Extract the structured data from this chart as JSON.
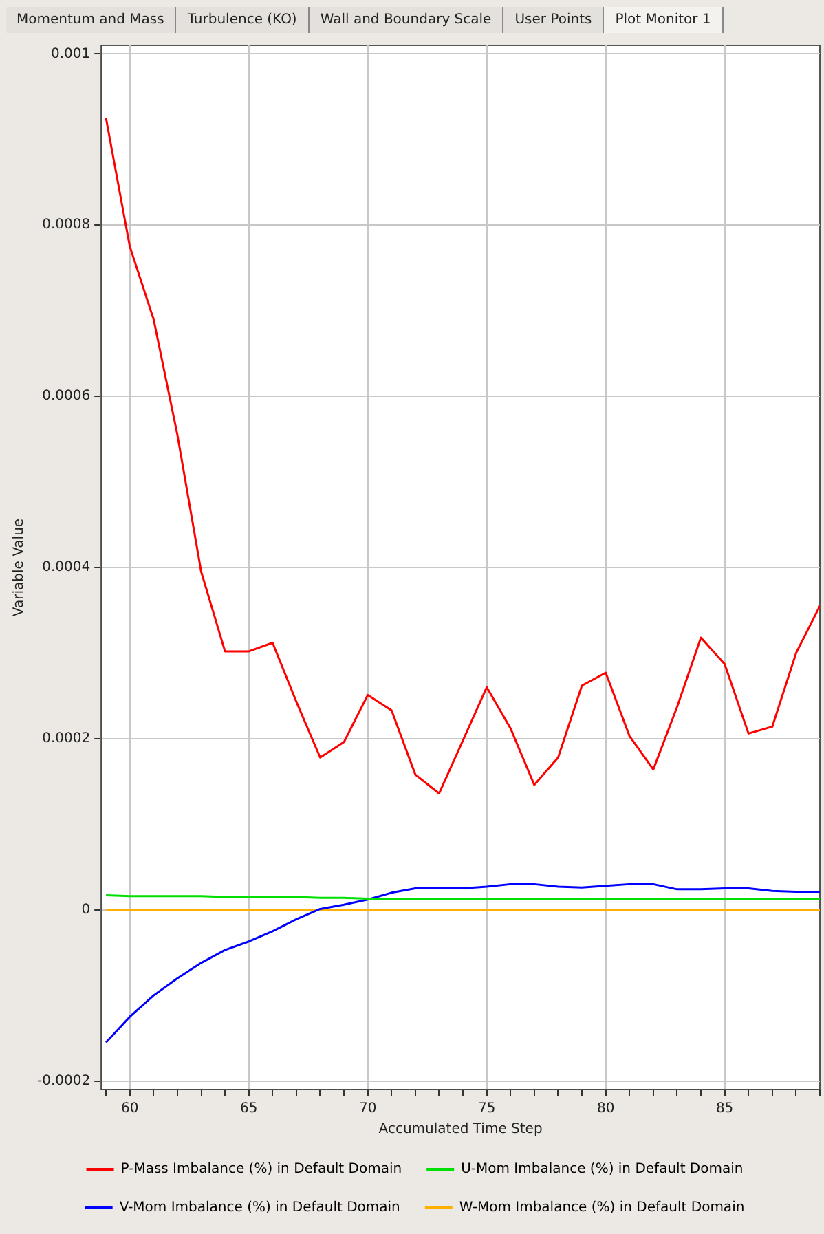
{
  "chart_data": {
    "type": "line",
    "xlabel": "Accumulated Time Step",
    "ylabel": "Variable Value",
    "annotations": [
      "Momentum and Mass",
      "Turbulence (KO)",
      "Wall and Boundary Scale",
      "User Points",
      "Plot Monitor 1"
    ],
    "x": [
      59,
      60,
      61,
      62,
      63,
      64,
      65,
      66,
      67,
      68,
      69,
      70,
      71,
      72,
      73,
      74,
      75,
      76,
      77,
      78,
      79,
      80,
      81,
      82,
      83,
      84,
      85,
      86,
      87,
      88,
      89
    ],
    "series": [
      {
        "name": "P-Mass Imbalance (%) in Default Domain",
        "color": "#ff0000",
        "values": [
          0.000925,
          0.000775,
          0.00069,
          0.000555,
          0.000395,
          0.000302,
          0.000302,
          0.000312,
          0.000243,
          0.000178,
          0.000196,
          0.000251,
          0.000233,
          0.000158,
          0.000136,
          0.000198,
          0.00026,
          0.000212,
          0.000146,
          0.000178,
          0.000262,
          0.000277,
          0.000203,
          0.000164,
          0.000237,
          0.000318,
          0.000287,
          0.000206,
          0.000214,
          0.0003,
          0.000355
        ]
      },
      {
        "name": "U-Mom Imbalance (%) in Default Domain",
        "color": "#00e000",
        "values": [
          1.7e-05,
          1.6e-05,
          1.6e-05,
          1.6e-05,
          1.6e-05,
          1.5e-05,
          1.5e-05,
          1.5e-05,
          1.5e-05,
          1.4e-05,
          1.4e-05,
          1.3e-05,
          1.3e-05,
          1.3e-05,
          1.3e-05,
          1.3e-05,
          1.3e-05,
          1.3e-05,
          1.3e-05,
          1.3e-05,
          1.3e-05,
          1.3e-05,
          1.3e-05,
          1.3e-05,
          1.3e-05,
          1.3e-05,
          1.3e-05,
          1.3e-05,
          1.3e-05,
          1.3e-05,
          1.3e-05
        ]
      },
      {
        "name": "V-Mom Imbalance (%) in Default Domain",
        "color": "#0000ff",
        "values": [
          -0.000155,
          -0.000125,
          -0.0001,
          -8e-05,
          -6.2e-05,
          -4.7e-05,
          -3.7e-05,
          -2.5e-05,
          -1.1e-05,
          1e-06,
          6e-06,
          1.2e-05,
          2e-05,
          2.5e-05,
          2.5e-05,
          2.5e-05,
          2.7e-05,
          3e-05,
          3e-05,
          2.7e-05,
          2.6e-05,
          2.8e-05,
          3e-05,
          3e-05,
          2.4e-05,
          2.4e-05,
          2.5e-05,
          2.5e-05,
          2.2e-05,
          2.1e-05,
          2.1e-05
        ]
      },
      {
        "name": "W-Mom Imbalance (%) in Default Domain",
        "color": "#ffb000",
        "values": [
          0,
          0,
          0,
          0,
          0,
          0,
          0,
          0,
          0,
          0,
          0,
          0,
          0,
          0,
          0,
          0,
          0,
          0,
          0,
          0,
          0,
          0,
          0,
          0,
          0,
          0,
          0,
          0,
          0,
          0,
          0
        ]
      }
    ],
    "xlim": [
      58.8,
      89
    ],
    "xticks": [
      {
        "value": 59,
        "label": null
      },
      60,
      {
        "value": 61,
        "label": null
      },
      {
        "value": 62,
        "label": null
      },
      {
        "value": 63,
        "label": null
      },
      {
        "value": 64,
        "label": null
      },
      65,
      {
        "value": 66,
        "label": null
      },
      {
        "value": 67,
        "label": null
      },
      {
        "value": 68,
        "label": null
      },
      {
        "value": 69,
        "label": null
      },
      70,
      {
        "value": 71,
        "label": null
      },
      {
        "value": 72,
        "label": null
      },
      {
        "value": 73,
        "label": null
      },
      {
        "value": 74,
        "label": null
      },
      75,
      {
        "value": 76,
        "label": null
      },
      {
        "value": 77,
        "label": null
      },
      {
        "value": 78,
        "label": null
      },
      {
        "value": 79,
        "label": null
      },
      80,
      {
        "value": 81,
        "label": null
      },
      {
        "value": 82,
        "label": null
      },
      {
        "value": 83,
        "label": null
      },
      {
        "value": 84,
        "label": null
      },
      85,
      {
        "value": 86,
        "label": null
      },
      {
        "value": 87,
        "label": null
      },
      {
        "value": 88,
        "label": null
      },
      {
        "value": 89,
        "label": null
      }
    ],
    "ylim": [
      -0.00021,
      0.00101
    ],
    "yticks": [
      -0.0002,
      0,
      0.0002,
      0.0004,
      0.0006,
      0.0008,
      0.001
    ],
    "grid": true,
    "legend": "bottom",
    "marker": "none",
    "line_style": "solid"
  }
}
